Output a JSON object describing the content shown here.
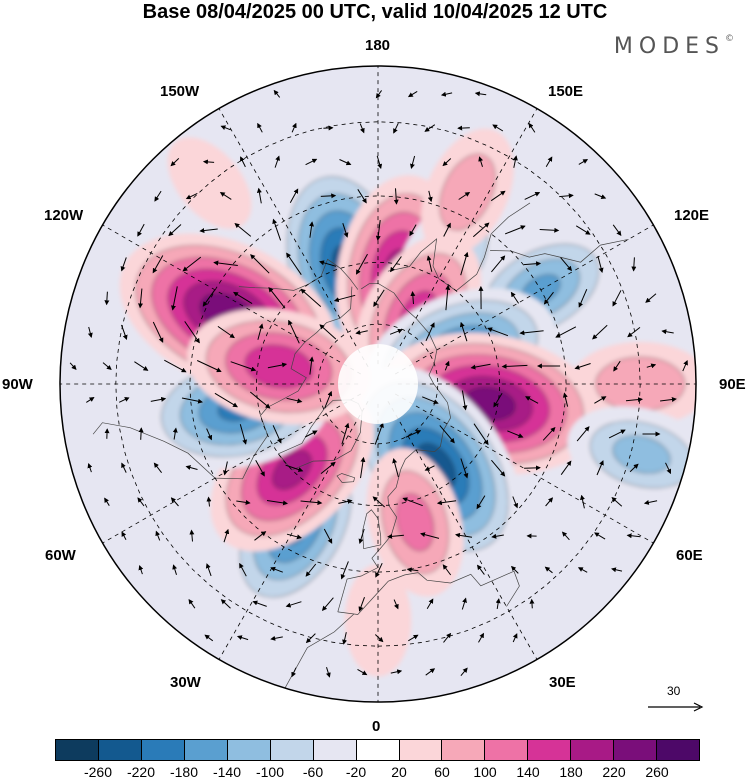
{
  "title": "Base 08/04/2025 00 UTC, valid 10/04/2025 12 UTC",
  "brand": "MODES",
  "brand_mark": "©",
  "longitude_labels": {
    "lon_180": "180",
    "lon_150e": "150E",
    "lon_120e": "120E",
    "lon_90e": "90E",
    "lon_60e": "60E",
    "lon_30e": "30E",
    "lon_0": "0",
    "lon_30w": "30W",
    "lon_60w": "60W",
    "lon_90w": "90W",
    "lon_120w": "120W",
    "lon_150w": "150W"
  },
  "reference_vector": "30",
  "colorbar": {
    "colors": [
      "#0d3b5e",
      "#13598f",
      "#2a7bb8",
      "#5a9fd0",
      "#8fbee0",
      "#c2d6ea",
      "#e6e6f2",
      "#ffffff",
      "#fbd6d9",
      "#f6a8b8",
      "#ee72a6",
      "#d63397",
      "#a81a86",
      "#7a0e7a",
      "#4d0868"
    ],
    "ticks": [
      "-260",
      "-220",
      "-180",
      "-140",
      "-100",
      "-60",
      "-20",
      "20",
      "60",
      "100",
      "140",
      "180",
      "220",
      "260"
    ]
  },
  "anomaly_centers": [
    {
      "lon": -165,
      "lat": 60,
      "value": -230
    },
    {
      "lon": 170,
      "lat": 62,
      "value": 190
    },
    {
      "lon": 150,
      "lat": 55,
      "value": -110
    },
    {
      "lon": 155,
      "lat": 40,
      "value": 80
    },
    {
      "lon": 120,
      "lat": 45,
      "value": -140
    },
    {
      "lon": 150,
      "lat": 70,
      "value": 150
    },
    {
      "lon": 110,
      "lat": 68,
      "value": -190
    },
    {
      "lon": 90,
      "lat": 30,
      "value": 90
    },
    {
      "lon": 80,
      "lat": 62,
      "value": 240
    },
    {
      "lon": 75,
      "lat": 28,
      "value": -110
    },
    {
      "lon": 35,
      "lat": 65,
      "value": -240
    },
    {
      "lon": 15,
      "lat": 55,
      "value": 110
    },
    {
      "lon": -30,
      "lat": 50,
      "value": -180
    },
    {
      "lon": -45,
      "lat": 60,
      "value": 190
    },
    {
      "lon": -80,
      "lat": 55,
      "value": -180
    },
    {
      "lon": -115,
      "lat": 50,
      "value": 250
    },
    {
      "lon": -100,
      "lat": 65,
      "value": 170
    },
    {
      "lon": 0,
      "lat": 35,
      "value": 40
    },
    {
      "lon": -140,
      "lat": 30,
      "value": 30
    }
  ]
}
